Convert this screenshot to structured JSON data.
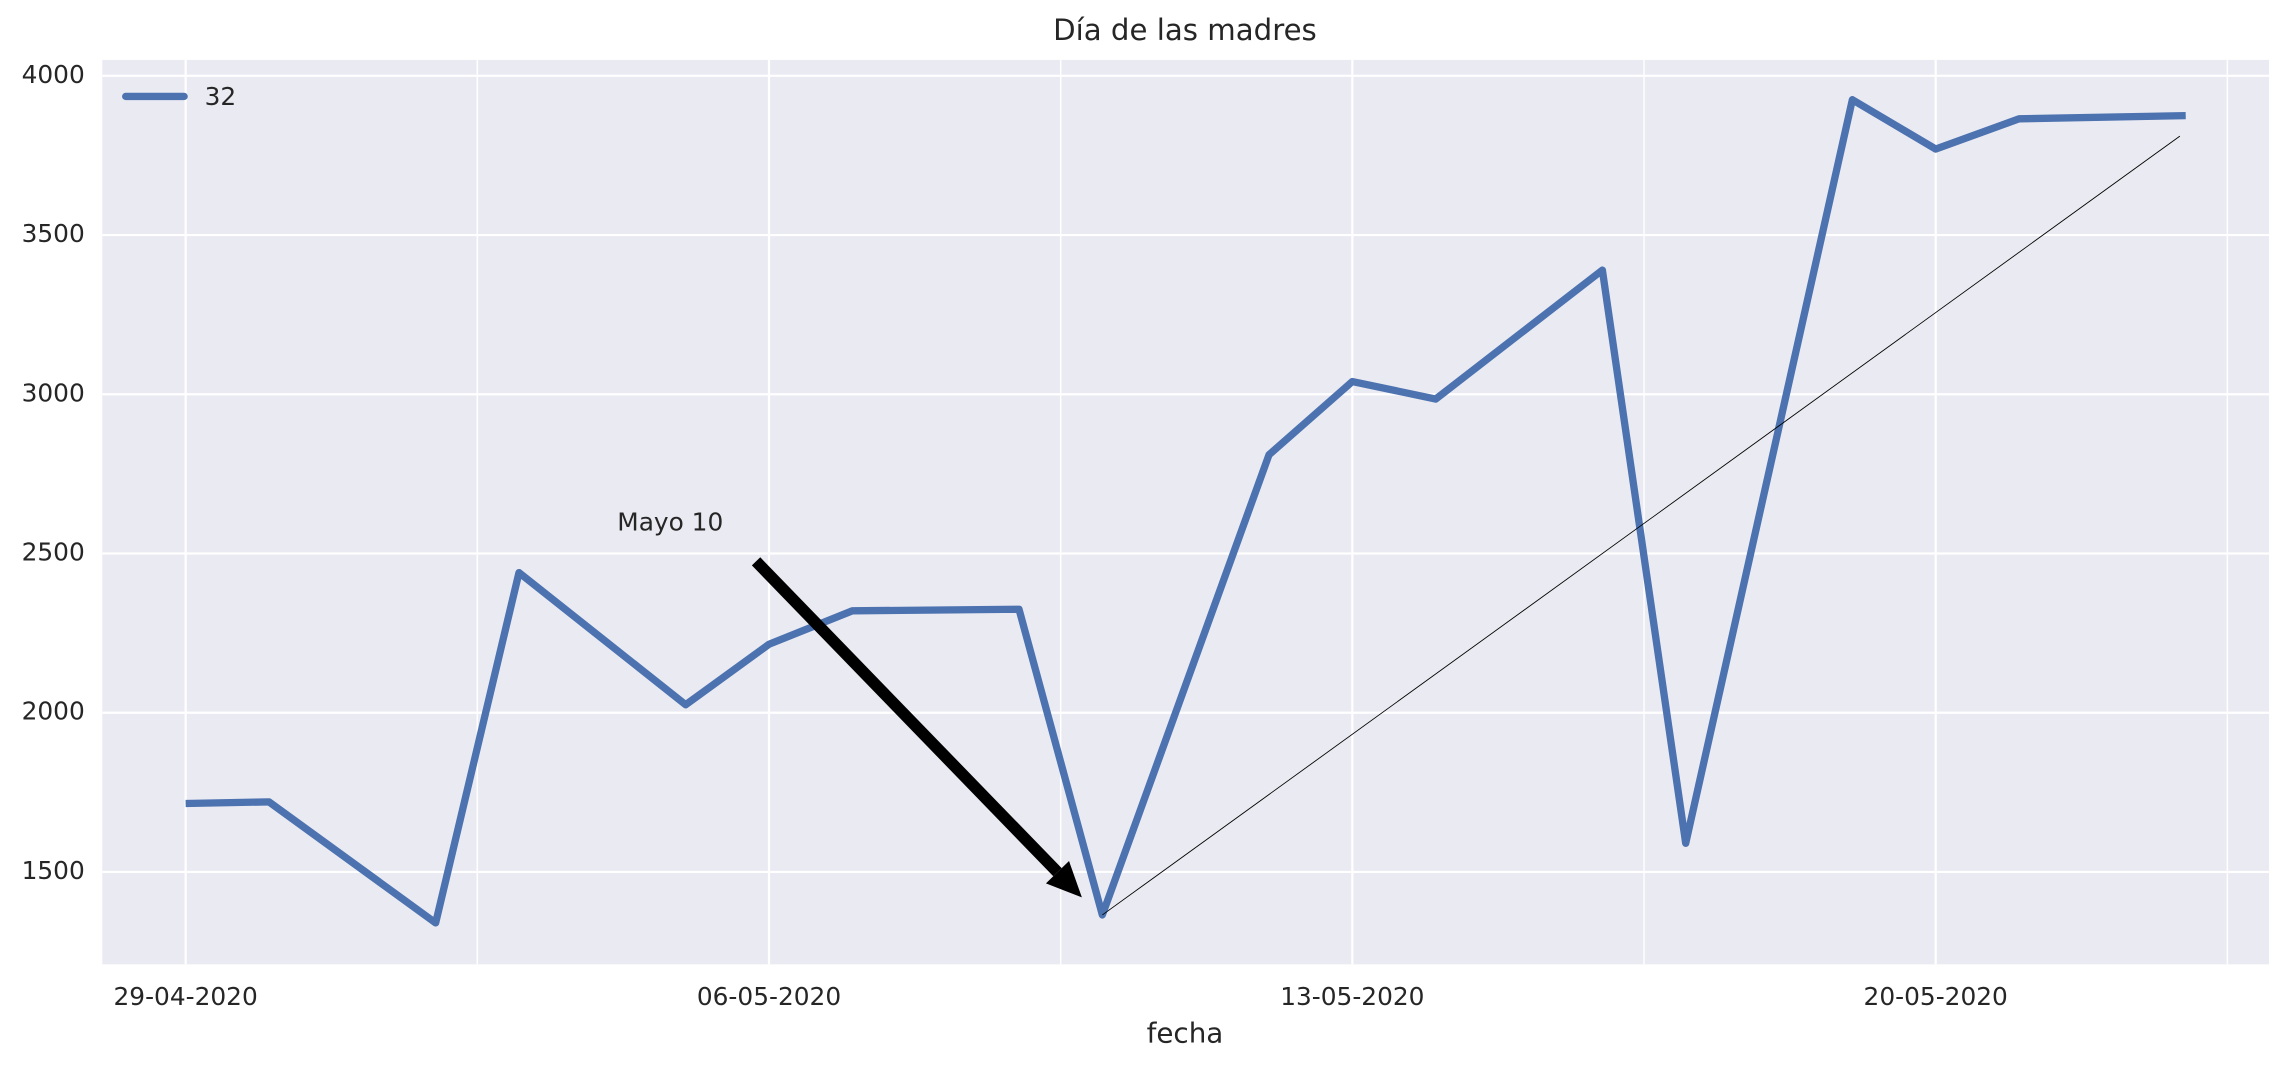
{
  "chart_data": {
    "type": "line",
    "title": "Día de las madres",
    "xlabel": "fecha",
    "x": [
      "29-04-2020",
      "30-04-2020",
      "02-05-2020",
      "03-05-2020",
      "05-05-2020",
      "06-05-2020",
      "07-05-2020",
      "09-05-2020",
      "10-05-2020",
      "12-05-2020",
      "13-05-2020",
      "14-05-2020",
      "16-05-2020",
      "17-05-2020",
      "19-05-2020",
      "20-05-2020",
      "21-05-2020",
      "23-05-2020"
    ],
    "series": [
      {
        "name": "32",
        "color": "#4c72b0",
        "values": [
          1715,
          1720,
          1340,
          2440,
          2025,
          2215,
          2320,
          2325,
          1365,
          2810,
          3040,
          2985,
          3390,
          1590,
          3925,
          3770,
          3865,
          3875
        ]
      }
    ],
    "xlim": [
      "28-04-2020",
      "24-05-2020"
    ],
    "xticks": [
      "29-04-2020",
      "06-05-2020",
      "13-05-2020",
      "20-05-2020"
    ],
    "ylim": [
      1210,
      4050
    ],
    "yticks": [
      1500,
      2000,
      2500,
      3000,
      3500,
      4000
    ],
    "grid": true,
    "legend": "upper left",
    "annotation": {
      "text": "Mayo 10"
    }
  }
}
